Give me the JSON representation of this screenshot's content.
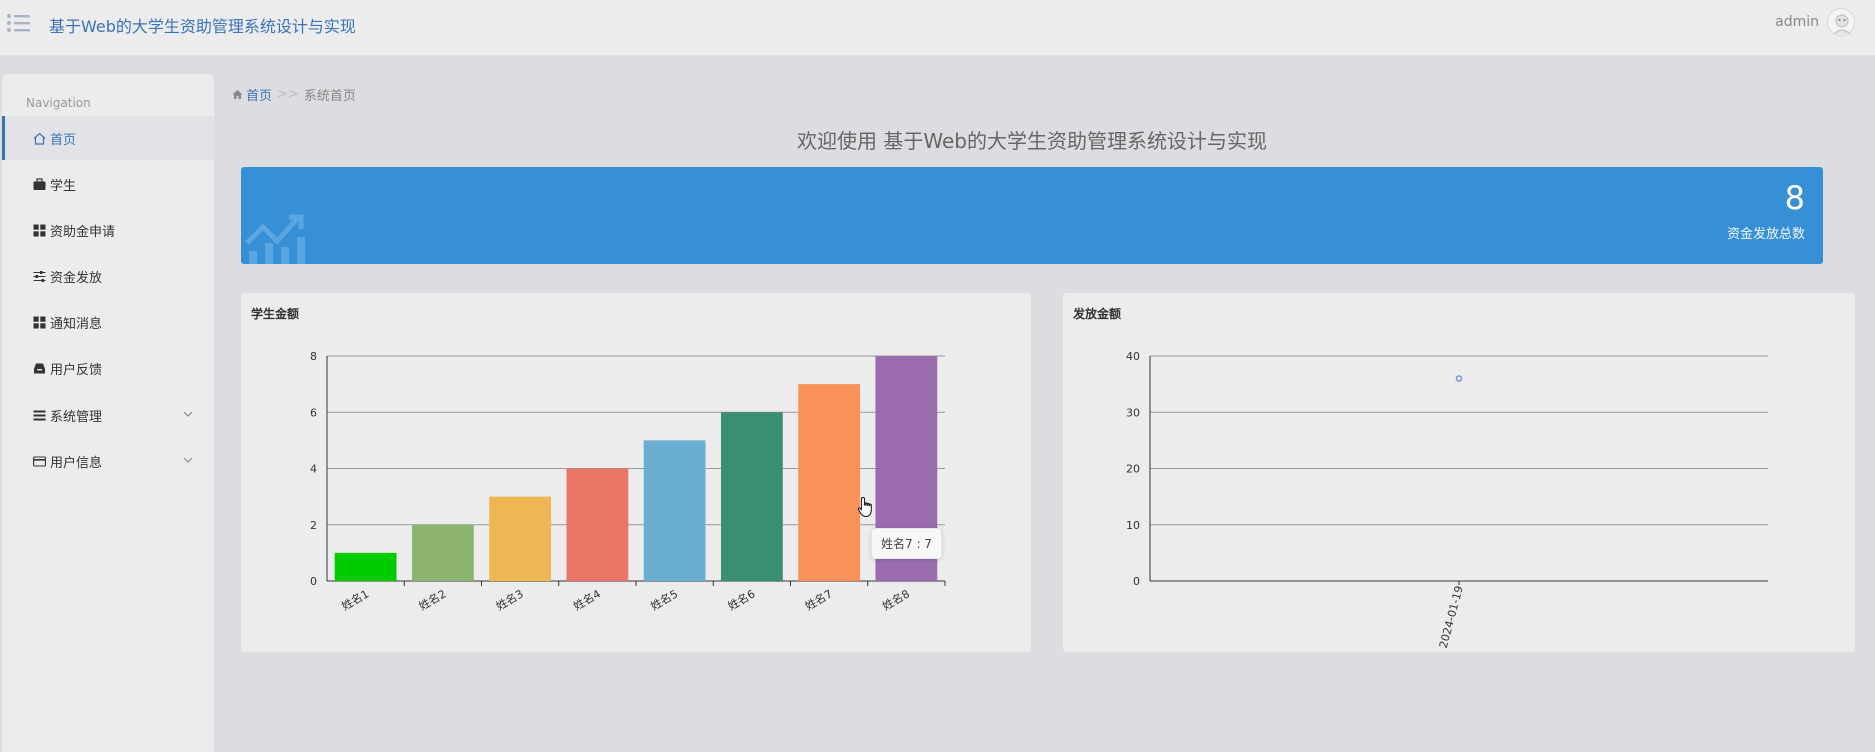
{
  "header": {
    "title": "基于Web的大学生资助管理系统设计与实现",
    "user": "admin"
  },
  "sidebar": {
    "heading": "Navigation",
    "items": [
      {
        "label": "首页",
        "icon": "home-icon",
        "active": true
      },
      {
        "label": "学生",
        "icon": "briefcase-icon"
      },
      {
        "label": "资助金申请",
        "icon": "grid-icon"
      },
      {
        "label": "资金发放",
        "icon": "sliders-icon"
      },
      {
        "label": "通知消息",
        "icon": "grid-icon"
      },
      {
        "label": "用户反馈",
        "icon": "inbox-icon"
      },
      {
        "label": "系统管理",
        "icon": "list-icon",
        "expandable": true
      },
      {
        "label": "用户信息",
        "icon": "card-icon",
        "expandable": true
      }
    ]
  },
  "breadcrumb": {
    "home": "首页",
    "separator": ">>",
    "current": "系统首页"
  },
  "welcome": "欢迎使用 基于Web的大学生资助管理系统设计与实现",
  "stat": {
    "value": "8",
    "label": "资金发放总数",
    "color": "#3790d6"
  },
  "charts": {
    "left": {
      "title": "学生金额",
      "chart_data": {
        "type": "bar",
        "categories": [
          "姓名1",
          "姓名2",
          "姓名3",
          "姓名4",
          "姓名5",
          "姓名6",
          "姓名7",
          "姓名8"
        ],
        "values": [
          1,
          2,
          3,
          4,
          5,
          6,
          7,
          8
        ],
        "colors": [
          "#00cc00",
          "#8bb46e",
          "#eeb754",
          "#ea7565",
          "#6aaed1",
          "#3a8f71",
          "#f89258",
          "#9b6cb0"
        ],
        "ylim": [
          0,
          8
        ],
        "yticks": [
          0,
          2,
          4,
          6,
          8
        ],
        "grid": true
      },
      "tooltip": "姓名7 : 7"
    },
    "right": {
      "title": "发放金额",
      "chart_data": {
        "type": "scatter",
        "x": [
          "2024-01-19"
        ],
        "values": [
          36
        ],
        "color": "#6f8fd6",
        "ylim": [
          0,
          40
        ],
        "yticks": [
          0,
          10,
          20,
          30,
          40
        ],
        "grid": true
      }
    }
  }
}
